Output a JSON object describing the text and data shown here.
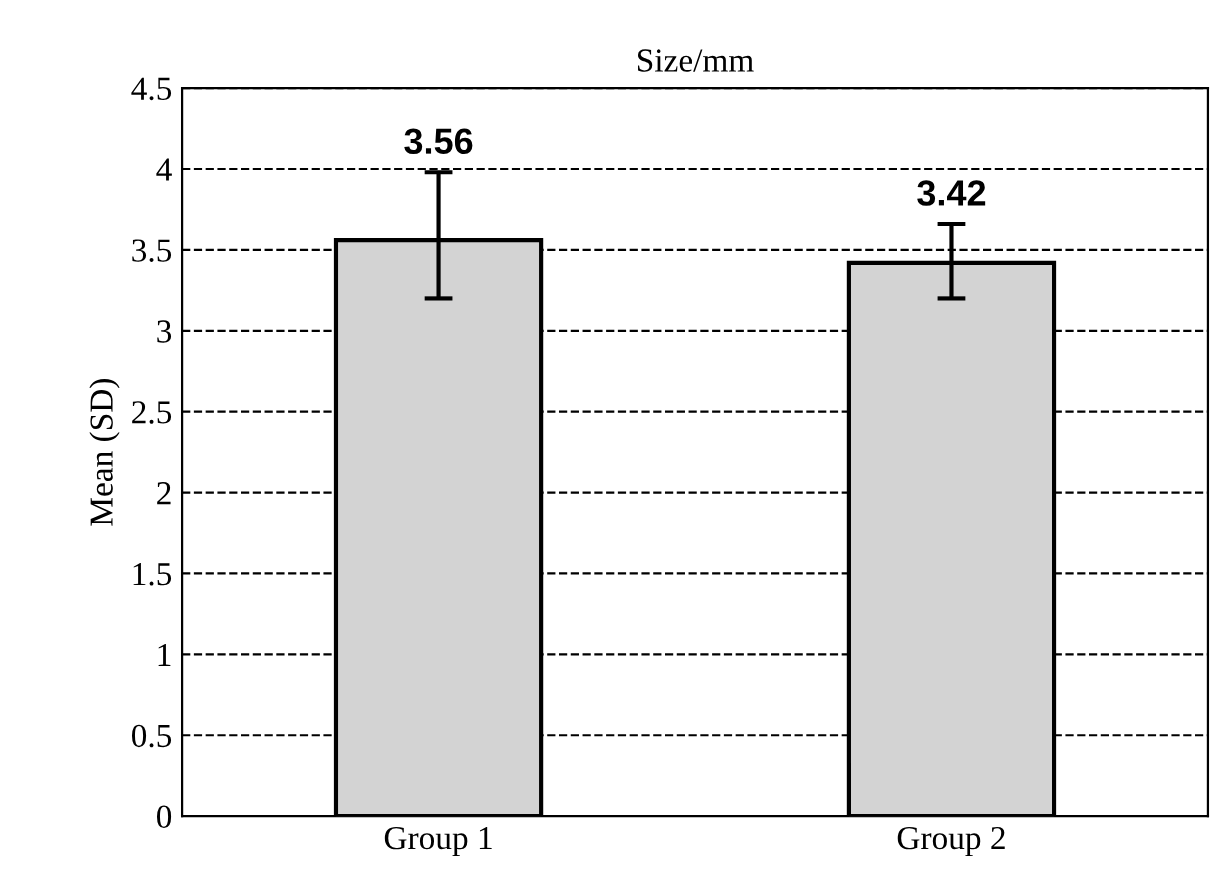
{
  "chart_data": {
    "type": "bar",
    "title": "Size/mm",
    "ylabel": "Mean (SD)",
    "categories": [
      "Group 1",
      "Group 2"
    ],
    "values": [
      3.56,
      3.42
    ],
    "errors": [
      [
        3.2,
        3.98
      ],
      [
        3.2,
        3.66
      ]
    ],
    "color": "#d3d3d3",
    "data_labels": true,
    "ylim": [
      0,
      4.5
    ],
    "yticks": [
      0,
      0.5,
      1,
      1.5,
      2,
      2.5,
      3,
      3.5,
      4,
      4.5
    ],
    "grid": "y",
    "legend": false
  }
}
